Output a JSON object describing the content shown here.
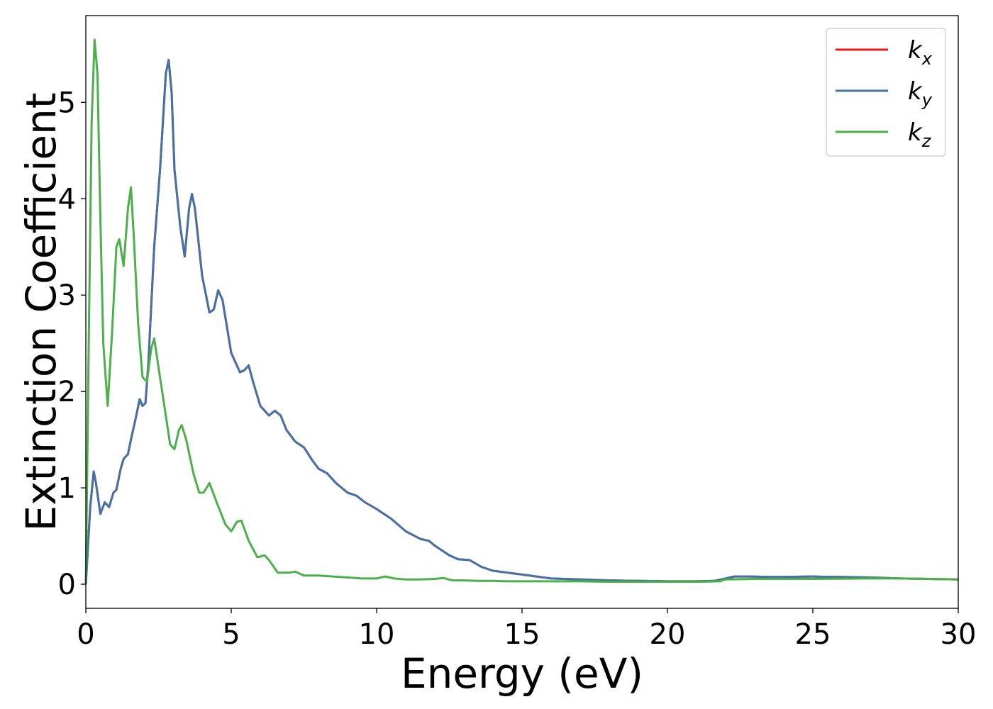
{
  "chart_data": {
    "type": "line",
    "title": "",
    "xlabel": "Energy (eV)",
    "ylabel": "Extinction Coefficient",
    "xlim": [
      0,
      30
    ],
    "ylim": [
      -0.25,
      5.9
    ],
    "xticks": [
      0,
      5,
      10,
      15,
      20,
      25,
      30
    ],
    "xtick_labels": [
      "0",
      "5",
      "10",
      "15",
      "20",
      "25",
      "30"
    ],
    "yticks": [
      0,
      1,
      2,
      3,
      4,
      5
    ],
    "ytick_labels": [
      "0",
      "1",
      "2",
      "3",
      "4",
      "5"
    ],
    "grid": false,
    "legend_position": "top-right",
    "series": [
      {
        "name_base": "k",
        "name_sub": "x",
        "color": "#e41a1c",
        "x": [
          0,
          0.15,
          0.27,
          0.35,
          0.5,
          0.65,
          0.8,
          0.95,
          1.05,
          1.2,
          1.3,
          1.45,
          1.55,
          1.7,
          1.85,
          1.95,
          2.05,
          2.15,
          2.35,
          2.55,
          2.75,
          2.85,
          2.95,
          3.05,
          3.25,
          3.4,
          3.55,
          3.65,
          3.75,
          4.0,
          4.25,
          4.4,
          4.55,
          4.7,
          5.0,
          5.3,
          5.45,
          5.6,
          5.75,
          6.0,
          6.3,
          6.5,
          6.7,
          6.9,
          7.2,
          7.5,
          7.8,
          8.0,
          8.3,
          8.6,
          9.0,
          9.3,
          9.6,
          10.0,
          10.5,
          11.0,
          11.5,
          11.8,
          12.0,
          12.5,
          12.8,
          13.2,
          13.6,
          14.0,
          14.5,
          15.0,
          15.5,
          16.0,
          17.0,
          18.0,
          19.0,
          20.0,
          21.0,
          21.6,
          22.0,
          22.3,
          22.8,
          23.5,
          24.0,
          25.0,
          25.5,
          26.0,
          27.0,
          28.0,
          29.0,
          30.0
        ],
        "y": [
          0,
          0.8,
          1.17,
          1.05,
          0.73,
          0.85,
          0.8,
          0.95,
          0.98,
          1.2,
          1.3,
          1.35,
          1.5,
          1.7,
          1.92,
          1.85,
          1.88,
          2.3,
          3.5,
          4.3,
          5.3,
          5.44,
          5.1,
          4.3,
          3.7,
          3.4,
          3.9,
          4.05,
          3.9,
          3.2,
          2.82,
          2.85,
          3.05,
          2.95,
          2.4,
          2.2,
          2.22,
          2.27,
          2.1,
          1.85,
          1.75,
          1.8,
          1.75,
          1.6,
          1.48,
          1.42,
          1.28,
          1.2,
          1.15,
          1.05,
          0.95,
          0.92,
          0.85,
          0.78,
          0.68,
          0.55,
          0.47,
          0.45,
          0.4,
          0.3,
          0.26,
          0.25,
          0.18,
          0.14,
          0.12,
          0.1,
          0.08,
          0.06,
          0.05,
          0.04,
          0.035,
          0.03,
          0.03,
          0.035,
          0.06,
          0.08,
          0.08,
          0.075,
          0.075,
          0.08,
          0.075,
          0.075,
          0.07,
          0.06,
          0.055,
          0.05
        ]
      },
      {
        "name_base": "k",
        "name_sub": "y",
        "color": "#4472a8",
        "x": [
          0,
          0.15,
          0.27,
          0.35,
          0.5,
          0.65,
          0.8,
          0.95,
          1.05,
          1.2,
          1.3,
          1.45,
          1.55,
          1.7,
          1.85,
          1.95,
          2.05,
          2.15,
          2.35,
          2.55,
          2.75,
          2.85,
          2.95,
          3.05,
          3.25,
          3.4,
          3.55,
          3.65,
          3.75,
          4.0,
          4.25,
          4.4,
          4.55,
          4.7,
          5.0,
          5.3,
          5.45,
          5.6,
          5.75,
          6.0,
          6.3,
          6.5,
          6.7,
          6.9,
          7.2,
          7.5,
          7.8,
          8.0,
          8.3,
          8.6,
          9.0,
          9.3,
          9.6,
          10.0,
          10.5,
          11.0,
          11.5,
          11.8,
          12.0,
          12.5,
          12.8,
          13.2,
          13.6,
          14.0,
          14.5,
          15.0,
          15.5,
          16.0,
          17.0,
          18.0,
          19.0,
          20.0,
          21.0,
          21.6,
          22.0,
          22.3,
          22.8,
          23.5,
          24.0,
          25.0,
          25.5,
          26.0,
          27.0,
          28.0,
          29.0,
          30.0
        ],
        "y": [
          0,
          0.8,
          1.17,
          1.05,
          0.73,
          0.85,
          0.8,
          0.95,
          0.98,
          1.2,
          1.3,
          1.35,
          1.5,
          1.7,
          1.92,
          1.85,
          1.88,
          2.3,
          3.5,
          4.3,
          5.3,
          5.44,
          5.1,
          4.3,
          3.7,
          3.4,
          3.9,
          4.05,
          3.9,
          3.2,
          2.82,
          2.85,
          3.05,
          2.95,
          2.4,
          2.2,
          2.22,
          2.27,
          2.1,
          1.85,
          1.75,
          1.8,
          1.75,
          1.6,
          1.48,
          1.42,
          1.28,
          1.2,
          1.15,
          1.05,
          0.95,
          0.92,
          0.85,
          0.78,
          0.68,
          0.55,
          0.47,
          0.45,
          0.4,
          0.3,
          0.26,
          0.25,
          0.18,
          0.14,
          0.12,
          0.1,
          0.08,
          0.06,
          0.05,
          0.04,
          0.035,
          0.03,
          0.03,
          0.035,
          0.06,
          0.08,
          0.08,
          0.075,
          0.075,
          0.08,
          0.075,
          0.075,
          0.07,
          0.06,
          0.055,
          0.05
        ]
      },
      {
        "name_base": "k",
        "name_sub": "z",
        "color": "#4daf4a",
        "x": [
          0,
          0.1,
          0.2,
          0.3,
          0.4,
          0.5,
          0.6,
          0.75,
          0.9,
          1.05,
          1.15,
          1.3,
          1.45,
          1.55,
          1.65,
          1.8,
          1.95,
          2.1,
          2.25,
          2.35,
          2.5,
          2.7,
          2.9,
          3.05,
          3.2,
          3.3,
          3.45,
          3.7,
          3.9,
          4.05,
          4.25,
          4.5,
          4.8,
          5.0,
          5.2,
          5.35,
          5.6,
          5.9,
          6.15,
          6.3,
          6.6,
          7.0,
          7.2,
          7.5,
          8.0,
          8.5,
          9.0,
          9.5,
          10.0,
          10.3,
          10.6,
          11.0,
          11.5,
          12.0,
          12.3,
          12.6,
          13.0,
          13.5,
          14.0,
          14.5,
          15.0,
          16.0,
          17.0,
          18.0,
          19.0,
          20.0,
          21.0,
          21.8,
          22.0,
          23.0,
          25.0,
          27.0,
          28.0,
          30.0
        ],
        "y": [
          0,
          2.5,
          4.8,
          5.65,
          5.3,
          3.8,
          2.5,
          1.85,
          2.6,
          3.5,
          3.58,
          3.3,
          3.9,
          4.12,
          3.6,
          2.7,
          2.15,
          2.1,
          2.45,
          2.55,
          2.25,
          1.85,
          1.45,
          1.4,
          1.6,
          1.65,
          1.5,
          1.15,
          0.95,
          0.95,
          1.05,
          0.85,
          0.62,
          0.55,
          0.65,
          0.66,
          0.45,
          0.28,
          0.3,
          0.25,
          0.12,
          0.12,
          0.13,
          0.09,
          0.09,
          0.08,
          0.07,
          0.06,
          0.06,
          0.08,
          0.06,
          0.05,
          0.05,
          0.055,
          0.065,
          0.04,
          0.04,
          0.035,
          0.035,
          0.03,
          0.03,
          0.03,
          0.03,
          0.025,
          0.025,
          0.025,
          0.025,
          0.03,
          0.05,
          0.055,
          0.055,
          0.06,
          0.06,
          0.05
        ]
      }
    ]
  }
}
